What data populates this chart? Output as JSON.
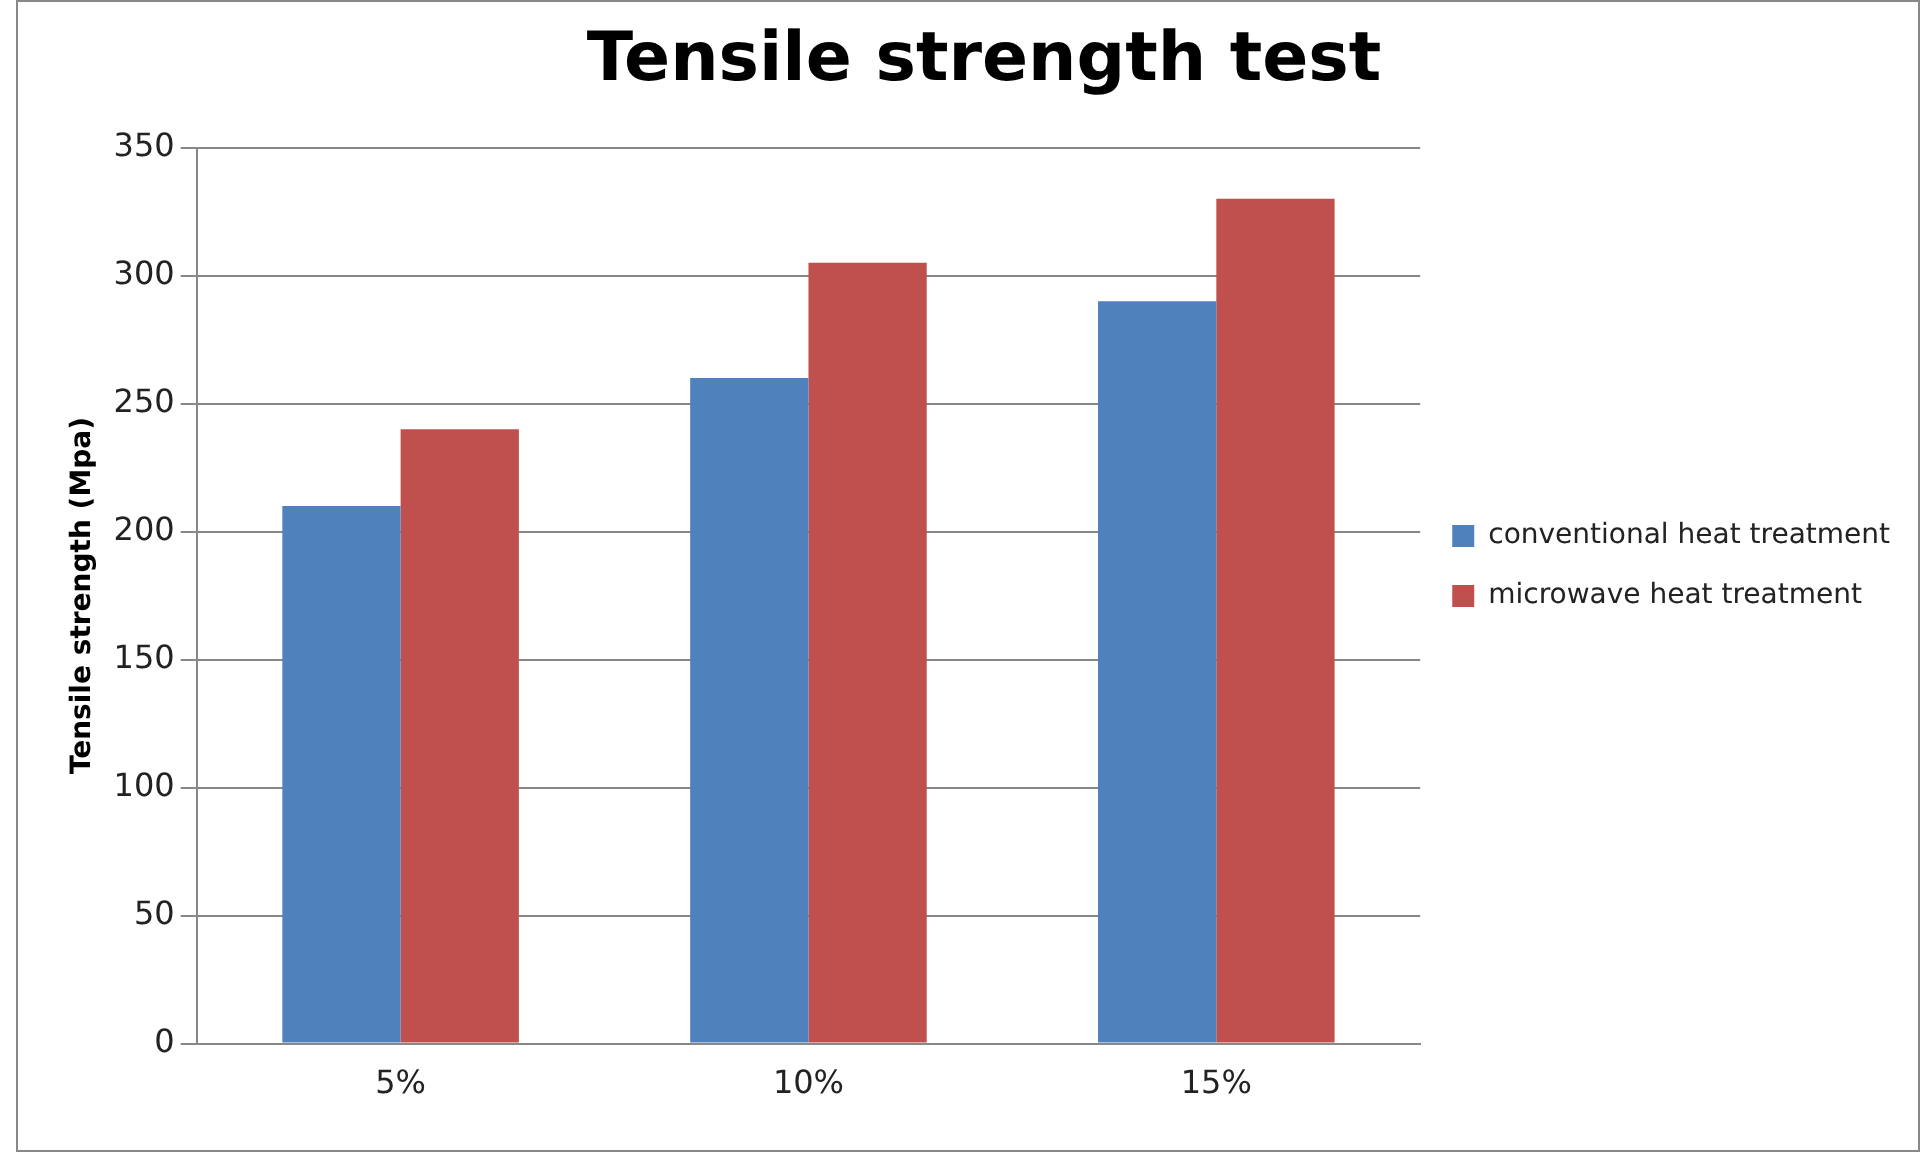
{
  "chart_data": {
    "type": "bar",
    "title": "Tensile strength test",
    "ylabel": "Tensile strength (Mpa)",
    "categories": [
      "5%",
      "10%",
      "15%"
    ],
    "series": [
      {
        "name": "conventional heat treatment",
        "color": "#4f81bd",
        "values": [
          210,
          260,
          290
        ]
      },
      {
        "name": "microwave heat treatment",
        "color": "#c0504d",
        "values": [
          240,
          305,
          330
        ]
      }
    ],
    "ylim": [
      0,
      350
    ],
    "yticks": [
      0,
      50,
      100,
      150,
      200,
      250,
      300,
      350
    ],
    "grid": "y",
    "legend": "right"
  }
}
